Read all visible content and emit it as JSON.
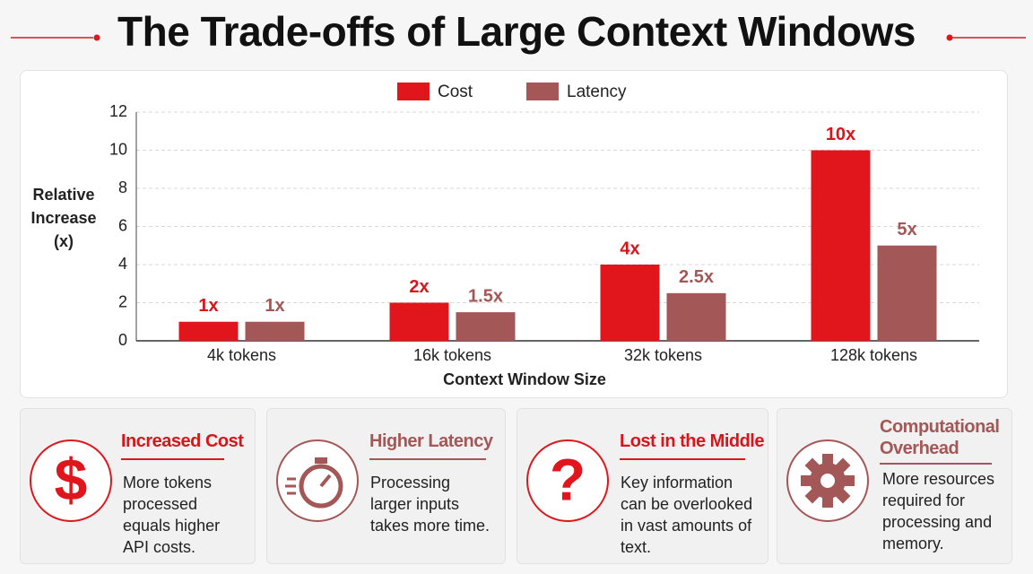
{
  "chart_data": {
    "type": "bar",
    "title": "The Trade-offs of Large Context Windows",
    "x_label": "Context Window Size",
    "y_label": "Relative Increase (x)",
    "categories": [
      "4k tokens",
      "16k tokens",
      "32k tokens",
      "128k tokens"
    ],
    "series": [
      {
        "name": "Cost",
        "color": "#e0161c",
        "values": [
          1,
          2,
          4,
          10
        ],
        "value_labels": [
          "1x",
          "2x",
          "4x",
          "10x"
        ]
      },
      {
        "name": "Latency",
        "color": "#a35757",
        "values": [
          1,
          1.5,
          2.5,
          5
        ],
        "value_labels": [
          "1x",
          "1.5x",
          "2.5x",
          "5x"
        ]
      }
    ],
    "ylim": [
      0,
      12
    ],
    "yticks": [
      0,
      2,
      4,
      6,
      8,
      10,
      12
    ],
    "grid": true,
    "legend": "top"
  },
  "cards": [
    {
      "icon": "$",
      "title": "Increased Cost",
      "text": "More tokens processed equals higher API costs."
    },
    {
      "title": "Higher Latency",
      "text": "Processing larger inputs takes more time."
    },
    {
      "icon": "?",
      "title": "Lost in the Middle",
      "text": "Key information can be overlooked in vast amounts of text."
    },
    {
      "title": "Computational Overhead",
      "text": "More resources required for processing and memory."
    }
  ]
}
